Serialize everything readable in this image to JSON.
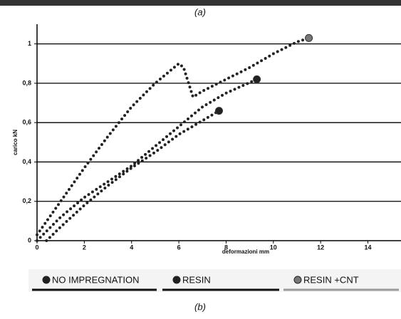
{
  "panel_labels": [
    "(a)",
    "(b)"
  ],
  "chart_data": {
    "type": "line",
    "x_label": "deformazioni mm",
    "y_label": "carico kN",
    "xlim": [
      0,
      15.4
    ],
    "ylim": [
      0,
      1.1
    ],
    "xticks": [
      0,
      2,
      4,
      6,
      8,
      10,
      12,
      14
    ],
    "yticks": [
      0,
      {
        "value": 0.2,
        "label": "0,2"
      },
      {
        "value": 0.4,
        "label": "0,4"
      },
      {
        "value": 0.6,
        "label": "0,6"
      },
      {
        "value": 0.8,
        "label": "0,8"
      },
      1
    ],
    "grid": true,
    "legend": "bottom",
    "series": [
      {
        "name": "NO IMPREGNATION",
        "color": "#222222",
        "x": [
          0.4,
          1,
          2,
          3,
          4,
          5,
          6,
          7,
          7.7
        ],
        "values": [
          0,
          0.07,
          0.18,
          0.28,
          0.37,
          0.45,
          0.54,
          0.61,
          0.66
        ]
      },
      {
        "name": "RESIN",
        "color": "#222222",
        "x": [
          0,
          1,
          2,
          3,
          4,
          5,
          6,
          7,
          8,
          9.3
        ],
        "values": [
          0,
          0.12,
          0.22,
          0.3,
          0.38,
          0.48,
          0.58,
          0.68,
          0.75,
          0.82
        ]
      },
      {
        "name": "RESIN  +CNT",
        "color": "#777777",
        "x": [
          0,
          1,
          2,
          3,
          4,
          5,
          6,
          6.2,
          6.6,
          7,
          8,
          9,
          10,
          11,
          11.5
        ],
        "values": [
          0.03,
          0.2,
          0.37,
          0.53,
          0.68,
          0.8,
          0.9,
          0.88,
          0.73,
          0.76,
          0.82,
          0.88,
          0.95,
          1.01,
          1.03
        ]
      }
    ]
  }
}
